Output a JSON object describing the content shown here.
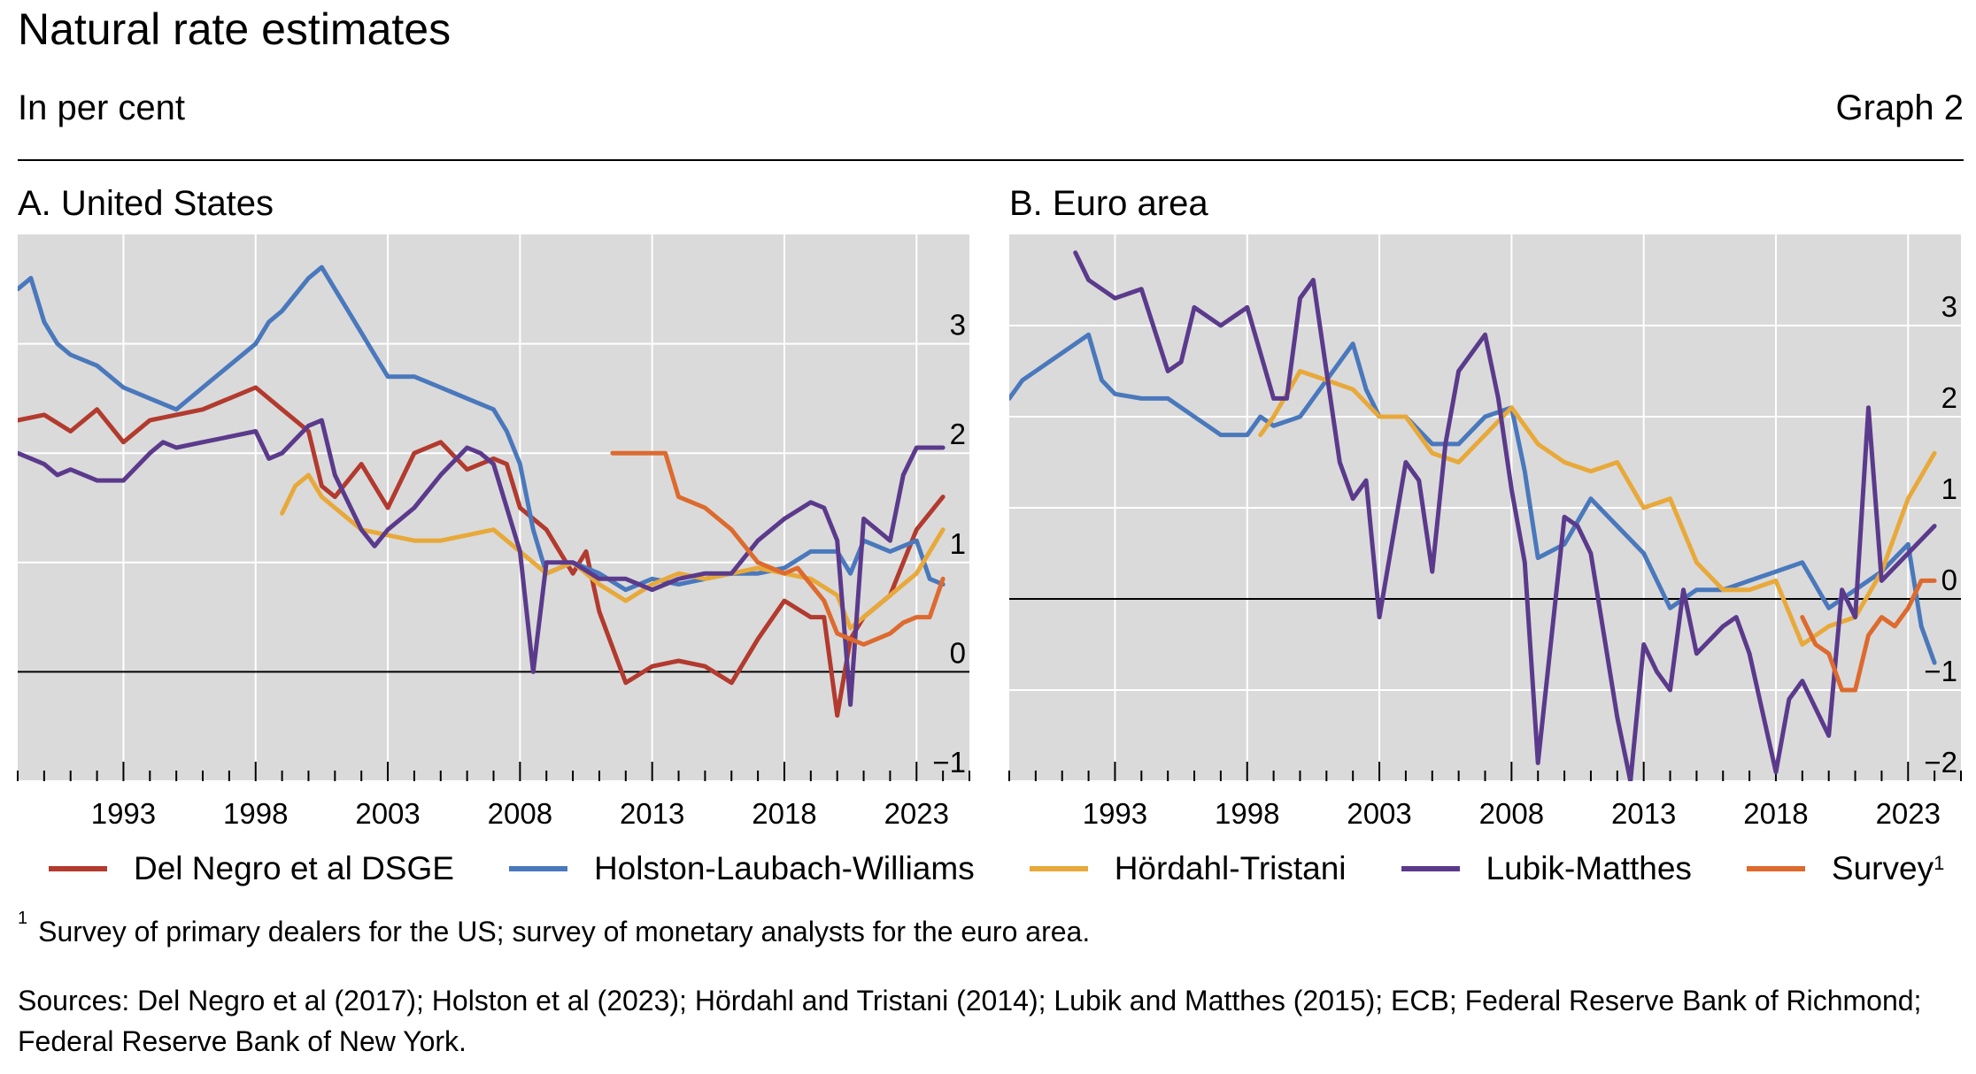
{
  "header": {
    "title": "Natural rate estimates",
    "subtitle": "In per cent",
    "graph_number": "Graph 2"
  },
  "legend": [
    {
      "label": "Del Negro et al DSGE",
      "color": "#b23a2e"
    },
    {
      "label": "Holston-Laubach-Williams",
      "color": "#4a78bc"
    },
    {
      "label": "Hördahl-Tristani",
      "color": "#e8a93a"
    },
    {
      "label": "Lubik-Matthes",
      "color": "#5b3a8c"
    },
    {
      "label": "Survey",
      "color": "#dd6a2e",
      "footnote": "1"
    }
  ],
  "footnote": {
    "marker": "1",
    "text": "Survey of primary dealers for the US; survey of monetary analysts for the euro area."
  },
  "sources": "Sources: Del Negro et al (2017); Holston et al (2023); Hördahl and Tristani (2014); Lubik and Matthes (2015); ECB; Federal Reserve Bank of Richmond; Federal Reserve Bank of New York.",
  "chart_data": [
    {
      "type": "line",
      "title": "A. United States",
      "xlabel": "",
      "ylabel": "",
      "xlim": [
        1989,
        2025
      ],
      "ylim": [
        -1,
        4
      ],
      "xticks": [
        1993,
        1998,
        2003,
        2008,
        2013,
        2018,
        2023
      ],
      "yticks": [
        -1,
        0,
        1,
        2,
        3
      ],
      "grid": true,
      "series": [
        {
          "name": "Del Negro et al DSGE",
          "color": "#b23a2e",
          "x": [
            1989,
            1990,
            1991,
            1992,
            1992.5,
            1993,
            1994,
            1995,
            1996,
            1997,
            1998,
            1999,
            2000,
            2000.5,
            2001,
            2002,
            2003,
            2004,
            2005,
            2006,
            2007,
            2007.5,
            2008,
            2009,
            2010,
            2010.5,
            2011,
            2012,
            2013,
            2014,
            2015,
            2016,
            2017,
            2018,
            2019,
            2019.5,
            2020,
            2020.5,
            2021,
            2022,
            2022.5,
            2023,
            2024
          ],
          "y": [
            2.3,
            2.35,
            2.2,
            2.4,
            2.25,
            2.1,
            2.3,
            2.35,
            2.4,
            2.5,
            2.6,
            2.4,
            2.2,
            1.7,
            1.6,
            1.9,
            1.5,
            2,
            2.1,
            1.85,
            1.95,
            1.9,
            1.5,
            1.3,
            0.9,
            1.1,
            0.55,
            -0.1,
            0.05,
            0.1,
            0.05,
            -0.1,
            0.3,
            0.65,
            0.5,
            0.5,
            -0.4,
            0.3,
            0.5,
            0.7,
            1.0,
            1.3,
            1.6
          ]
        },
        {
          "name": "Holston-Laubach-Williams",
          "color": "#4a78bc",
          "x": [
            1989,
            1989.5,
            1990,
            1990.5,
            1991,
            1992,
            1993,
            1994,
            1995,
            1996,
            1997,
            1998,
            1998.5,
            1999,
            1999.5,
            2000,
            2000.5,
            2001,
            2001.5,
            2002,
            2002.5,
            2003,
            2004,
            2005,
            2006,
            2007,
            2007.5,
            2008,
            2008.5,
            2009,
            2010,
            2011,
            2012,
            2013,
            2014,
            2015,
            2016,
            2017,
            2018,
            2019,
            2020,
            2020.5,
            2021,
            2022,
            2023,
            2023.5,
            2024
          ],
          "y": [
            3.5,
            3.6,
            3.2,
            3.0,
            2.9,
            2.8,
            2.6,
            2.5,
            2.4,
            2.6,
            2.8,
            3.0,
            3.2,
            3.3,
            3.45,
            3.6,
            3.7,
            3.5,
            3.3,
            3.1,
            2.9,
            2.7,
            2.7,
            2.6,
            2.5,
            2.4,
            2.2,
            1.9,
            1.3,
            0.9,
            1.0,
            0.9,
            0.75,
            0.85,
            0.8,
            0.85,
            0.9,
            0.9,
            0.95,
            1.1,
            1.1,
            0.9,
            1.2,
            1.1,
            1.2,
            0.85,
            0.8
          ]
        },
        {
          "name": "Hördahl-Tristani",
          "color": "#e8a93a",
          "x": [
            1999,
            1999.5,
            2000,
            2000.5,
            2001,
            2002,
            2003,
            2004,
            2005,
            2006,
            2007,
            2008,
            2009,
            2010,
            2011,
            2012,
            2013,
            2014,
            2015,
            2016,
            2017,
            2018,
            2019,
            2020,
            2020.5,
            2021,
            2022,
            2023,
            2024
          ],
          "y": [
            1.45,
            1.7,
            1.8,
            1.6,
            1.5,
            1.3,
            1.25,
            1.2,
            1.2,
            1.25,
            1.3,
            1.1,
            0.9,
            1.0,
            0.8,
            0.65,
            0.8,
            0.9,
            0.85,
            0.9,
            0.95,
            0.9,
            0.85,
            0.7,
            0.4,
            0.5,
            0.7,
            0.9,
            1.3
          ]
        },
        {
          "name": "Lubik-Matthes",
          "color": "#5b3a8c",
          "x": [
            1989,
            1990,
            1990.5,
            1991,
            1992,
            1993,
            1994,
            1994.5,
            1995,
            1996,
            1997,
            1998,
            1998.5,
            1999,
            2000,
            2000.5,
            2001,
            2002,
            2002.5,
            2003,
            2004,
            2005,
            2006,
            2006.5,
            2007,
            2008,
            2008.5,
            2009,
            2010,
            2011,
            2012,
            2013,
            2014,
            2015,
            2016,
            2017,
            2018,
            2019,
            2019.5,
            2020,
            2020.5,
            2021,
            2022,
            2022.5,
            2023,
            2024
          ],
          "y": [
            2.0,
            1.9,
            1.8,
            1.85,
            1.75,
            1.75,
            2.0,
            2.1,
            2.05,
            2.1,
            2.15,
            2.2,
            1.95,
            2.0,
            2.25,
            2.3,
            1.8,
            1.3,
            1.15,
            1.3,
            1.5,
            1.8,
            2.05,
            2.0,
            1.9,
            1.1,
            0,
            1.0,
            1.0,
            0.85,
            0.85,
            0.75,
            0.85,
            0.9,
            0.9,
            1.2,
            1.4,
            1.55,
            1.5,
            1.2,
            -0.3,
            1.4,
            1.2,
            1.8,
            2.05,
            2.05
          ]
        },
        {
          "name": "Survey",
          "color": "#dd6a2e",
          "x": [
            2011.5,
            2012,
            2013,
            2013.5,
            2014,
            2015,
            2016,
            2016.5,
            2017,
            2018,
            2018.5,
            2019,
            2019.5,
            2020,
            2020.5,
            2021,
            2022,
            2022.5,
            2023,
            2023.5,
            2024
          ],
          "y": [
            2.0,
            2.0,
            2.0,
            2.0,
            1.6,
            1.5,
            1.3,
            1.15,
            1.0,
            0.9,
            0.95,
            0.8,
            0.65,
            0.35,
            0.3,
            0.25,
            0.35,
            0.45,
            0.5,
            0.5,
            0.85
          ]
        }
      ]
    },
    {
      "type": "line",
      "title": "B. Euro area",
      "xlabel": "",
      "ylabel": "",
      "xlim": [
        1989,
        2025
      ],
      "ylim": [
        -2,
        4
      ],
      "xticks": [
        1993,
        1998,
        2003,
        2008,
        2013,
        2018,
        2023
      ],
      "yticks": [
        -2,
        -1,
        0,
        1,
        2,
        3
      ],
      "grid": true,
      "series": [
        {
          "name": "Holston-Laubach-Williams",
          "color": "#4a78bc",
          "x": [
            1989,
            1989.5,
            1990,
            1990.5,
            1991,
            1992,
            1992.5,
            1993,
            1994,
            1995,
            1996,
            1997,
            1998,
            1998.5,
            1999,
            2000,
            2001,
            2002,
            2002.5,
            2003,
            2004,
            2005,
            2006,
            2007,
            2008,
            2008.5,
            2009,
            2010,
            2011,
            2012,
            2013,
            2014,
            2015,
            2016,
            2017,
            2018,
            2019,
            2020,
            2021,
            2022,
            2023,
            2023.5,
            2024
          ],
          "y": [
            2.2,
            2.4,
            2.5,
            2.6,
            2.7,
            2.9,
            2.4,
            2.25,
            2.2,
            2.2,
            2.0,
            1.8,
            1.8,
            2.0,
            1.9,
            2.0,
            2.4,
            2.8,
            2.3,
            2.0,
            2.0,
            1.7,
            1.7,
            2.0,
            2.1,
            1.4,
            0.45,
            0.6,
            1.1,
            0.8,
            0.5,
            -0.1,
            0.1,
            0.1,
            0.2,
            0.3,
            0.4,
            -0.1,
            0.1,
            0.3,
            0.6,
            -0.3,
            -0.7
          ]
        },
        {
          "name": "Hördahl-Tristani",
          "color": "#e8a93a",
          "x": [
            1998.5,
            1999,
            2000,
            2001,
            2002,
            2003,
            2004,
            2005,
            2006,
            2007,
            2008,
            2009,
            2010,
            2011,
            2012,
            2013,
            2014,
            2015,
            2016,
            2017,
            2018,
            2019,
            2020,
            2021,
            2022,
            2023,
            2024
          ],
          "y": [
            1.8,
            2.0,
            2.5,
            2.4,
            2.3,
            2.0,
            2.0,
            1.6,
            1.5,
            1.8,
            2.1,
            1.7,
            1.5,
            1.4,
            1.5,
            1.0,
            1.1,
            0.4,
            0.1,
            0.1,
            0.2,
            -0.5,
            -0.3,
            -0.2,
            0.3,
            1.1,
            1.6
          ]
        },
        {
          "name": "Lubik-Matthes",
          "color": "#5b3a8c",
          "x": [
            1991.5,
            1992,
            1993,
            1994,
            1995,
            1995.5,
            1996,
            1997,
            1998,
            1999,
            1999.5,
            2000,
            2000.5,
            2001,
            2001.5,
            2002,
            2002.5,
            2003,
            2004,
            2004.5,
            2005,
            2005.5,
            2006,
            2007,
            2007.5,
            2008,
            2008.5,
            2009,
            2010,
            2010.5,
            2011,
            2012,
            2012.5,
            2013,
            2013.5,
            2014,
            2014.5,
            2015,
            2016,
            2016.5,
            2017,
            2018,
            2018.5,
            2019,
            2020,
            2020.5,
            2021,
            2021.5,
            2022,
            2023,
            2024
          ],
          "y": [
            3.8,
            3.5,
            3.3,
            3.4,
            2.5,
            2.6,
            3.2,
            3.0,
            3.2,
            2.2,
            2.2,
            3.3,
            3.5,
            2.5,
            1.5,
            1.1,
            1.3,
            -0.2,
            1.5,
            1.3,
            0.3,
            1.7,
            2.5,
            2.9,
            2.2,
            1.2,
            0.4,
            -1.8,
            0.9,
            0.8,
            0.5,
            -1.3,
            -2.0,
            -0.5,
            -0.8,
            -1.0,
            0.1,
            -0.6,
            -0.3,
            -0.2,
            -0.6,
            -1.9,
            -1.1,
            -0.9,
            -1.5,
            0.1,
            -0.2,
            2.1,
            0.2,
            0.5,
            0.8
          ]
        },
        {
          "name": "Survey",
          "color": "#dd6a2e",
          "x": [
            2019,
            2019.5,
            2020,
            2020.5,
            2021,
            2021.5,
            2022,
            2022.5,
            2023,
            2023.5,
            2024
          ],
          "y": [
            -0.2,
            -0.5,
            -0.6,
            -1.0,
            -1.0,
            -0.4,
            -0.2,
            -0.3,
            -0.1,
            0.2,
            0.2
          ]
        }
      ]
    }
  ]
}
